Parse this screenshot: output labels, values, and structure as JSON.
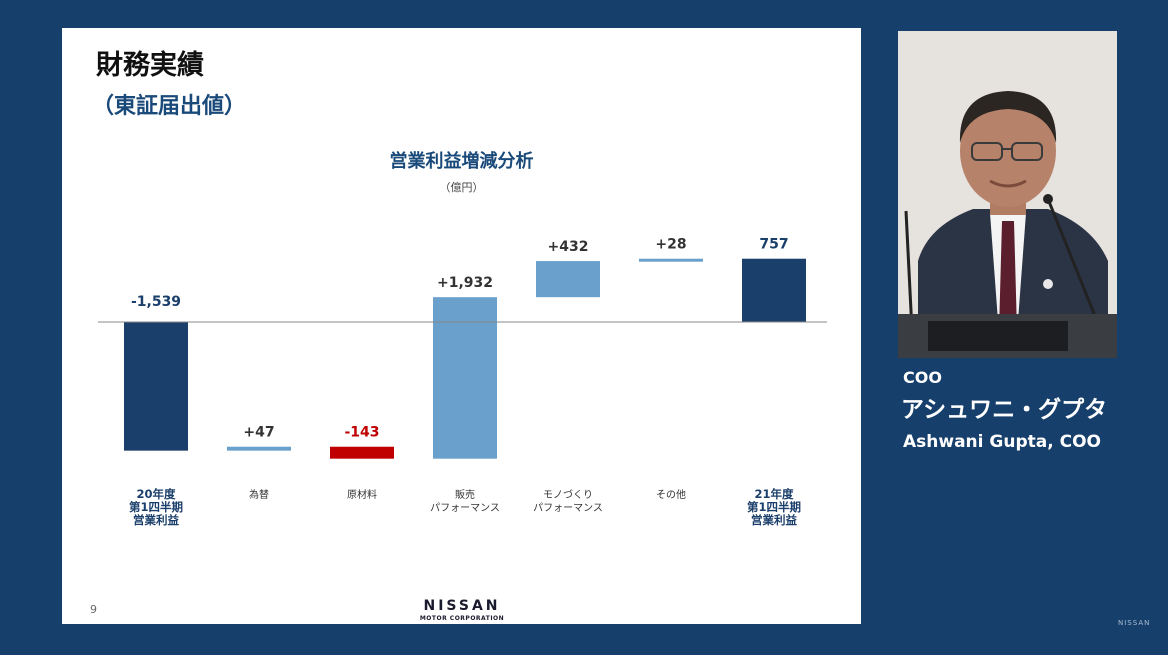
{
  "slide": {
    "title": "財務実績",
    "subtitle": "（東証届出値）",
    "page_number": "9",
    "logo_name": "NISSAN",
    "logo_sub": "MOTOR CORPORATION"
  },
  "chart_data": {
    "type": "waterfall",
    "title": "営業利益増減分析",
    "unit": "（億円）",
    "categories": [
      [
        "20年度",
        "第1四半期",
        "営業利益"
      ],
      [
        "為替"
      ],
      [
        "原材料"
      ],
      [
        "販売",
        "パフォーマンス"
      ],
      [
        "モノづくり",
        "パフォーマンス"
      ],
      [
        "その他"
      ],
      [
        "21年度",
        "第1四半期",
        "営業利益"
      ]
    ],
    "values": [
      -1539,
      47,
      -143,
      1932,
      432,
      28,
      757
    ],
    "labels": [
      "-1,539",
      "+47",
      "-143",
      "+1,932",
      "+432",
      "+28",
      "757"
    ],
    "kinds": [
      "total",
      "delta",
      "delta",
      "delta",
      "delta",
      "delta",
      "total"
    ],
    "colors": {
      "total": "#1b3f6b",
      "increase": "#6aa1cc",
      "decrease": "#c00000",
      "baseline": "#888888",
      "total_label": "#1b3f6b",
      "delta_label": "#333333",
      "negative_label": "#c00000"
    }
  },
  "speaker": {
    "role": "COO",
    "name_ja": "アシュワニ・グプタ",
    "name_en": "Ashwani Gupta, COO"
  },
  "corner_logo": "NISSAN"
}
